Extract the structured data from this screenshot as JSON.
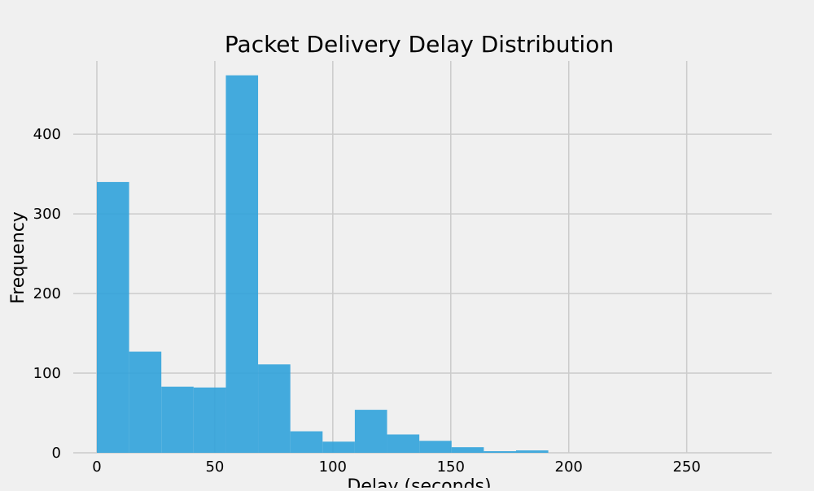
{
  "chart_data": {
    "type": "histogram",
    "title": "Packet Delivery Delay Distribution",
    "xlabel": "Delay (seconds)",
    "ylabel": "Frequency",
    "xlim": [
      -10,
      286
    ],
    "ylim": [
      0,
      492
    ],
    "grid": true,
    "bar_color": "#30a2da",
    "bin_width": 13.67,
    "bins": [
      {
        "start": 0.0,
        "end": 13.67,
        "value": 340
      },
      {
        "start": 13.67,
        "end": 27.33,
        "value": 127
      },
      {
        "start": 27.33,
        "end": 41.0,
        "value": 83
      },
      {
        "start": 41.0,
        "end": 54.67,
        "value": 82
      },
      {
        "start": 54.67,
        "end": 68.33,
        "value": 474
      },
      {
        "start": 68.33,
        "end": 82.0,
        "value": 111
      },
      {
        "start": 82.0,
        "end": 95.67,
        "value": 27
      },
      {
        "start": 95.67,
        "end": 109.33,
        "value": 14
      },
      {
        "start": 109.33,
        "end": 123.0,
        "value": 54
      },
      {
        "start": 123.0,
        "end": 136.67,
        "value": 23
      },
      {
        "start": 136.67,
        "end": 150.33,
        "value": 15
      },
      {
        "start": 150.33,
        "end": 164.0,
        "value": 7
      },
      {
        "start": 164.0,
        "end": 177.67,
        "value": 2
      },
      {
        "start": 177.67,
        "end": 191.33,
        "value": 3
      }
    ],
    "x_ticks": [
      0,
      50,
      100,
      150,
      200,
      250
    ],
    "y_ticks": [
      0,
      100,
      200,
      300,
      400
    ]
  }
}
